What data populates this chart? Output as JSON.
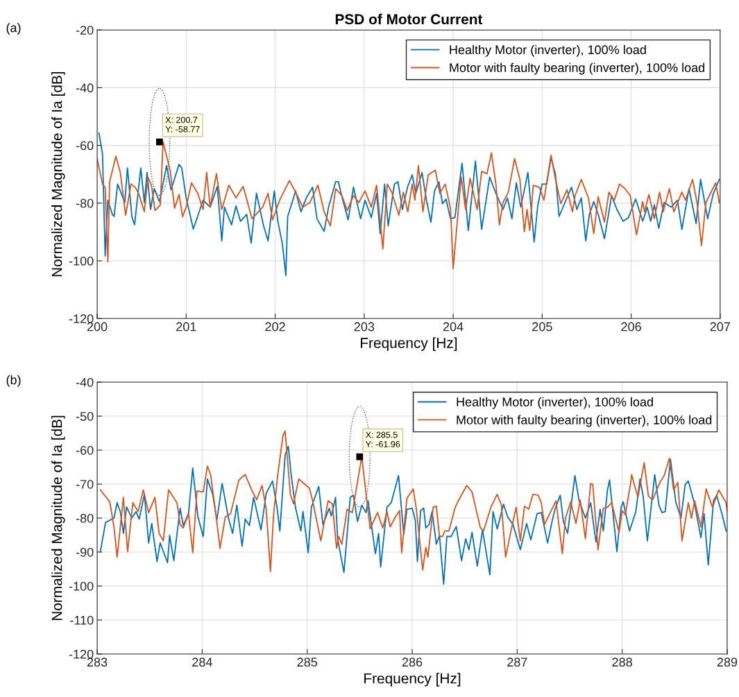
{
  "chart_data": [
    {
      "type": "line",
      "title": "PSD of Motor Current",
      "xlabel": "Frequency [Hz]",
      "ylabel": "Normalized Magnitude of Ia [dB]",
      "xlim": [
        200,
        207
      ],
      "xticks": [
        200,
        201,
        202,
        203,
        204,
        205,
        206,
        207
      ],
      "ylim": [
        -120,
        -20
      ],
      "yticks": [
        -120,
        -100,
        -80,
        -60,
        -40,
        -20
      ],
      "grid": true,
      "legend": "top right",
      "marker": "none",
      "line_style": "solid",
      "annotations": [
        "(a)",
        {
          "text": "X: 200.7\nY: -58.77",
          "x": 200.7,
          "y": -58.77
        }
      ],
      "series": [
        {
          "name": "Healthy Motor (inverter), 100% load",
          "color": "#0072bd",
          "x": [
            200.02,
            200.06,
            200.09,
            200.12,
            200.17,
            200.19,
            200.23,
            200.31,
            200.34,
            200.39,
            200.42,
            200.49,
            200.53,
            200.56,
            200.6,
            200.64,
            200.7,
            200.78,
            200.83,
            200.92,
            200.95,
            201.0,
            201.08,
            201.19,
            201.27,
            201.35,
            201.4,
            201.43,
            201.51,
            201.56,
            201.61,
            201.68,
            201.73,
            201.79,
            201.87,
            201.92,
            201.99,
            202.03,
            202.08,
            202.12,
            202.14,
            202.19,
            202.23,
            202.29,
            202.35,
            202.42,
            202.47,
            202.55,
            202.6,
            202.68,
            202.71,
            202.75,
            202.82,
            202.88,
            202.96,
            203.01,
            203.08,
            203.14,
            203.18,
            203.23,
            203.27,
            203.34,
            203.38,
            203.43,
            203.49,
            203.54,
            203.58,
            203.65,
            203.7,
            203.75,
            203.79,
            203.84,
            203.88,
            203.92,
            203.97,
            204.02,
            204.1,
            204.17,
            204.25,
            204.32,
            204.41,
            204.48,
            204.56,
            204.61,
            204.66,
            204.71,
            204.76,
            204.84,
            204.91,
            204.95,
            205.0,
            205.05,
            205.1,
            205.15,
            205.19,
            205.33,
            205.39,
            205.44,
            205.49,
            205.53,
            205.58,
            205.63,
            205.7,
            205.78,
            205.84,
            205.91,
            205.97,
            206.05,
            206.13,
            206.18,
            206.22,
            206.26,
            206.31,
            206.37,
            206.45,
            206.52,
            206.57,
            206.65,
            206.73,
            206.78,
            206.86,
            206.92,
            206.99
          ],
          "values": [
            -55.7,
            -63,
            -98.3,
            -79,
            -83.9,
            -84.6,
            -73.4,
            -79.8,
            -67.8,
            -84.7,
            -87.5,
            -67.8,
            -79.8,
            -69.4,
            -82.2,
            -75,
            -79.5,
            -67,
            -75.4,
            -66.6,
            -67.8,
            -78.2,
            -89,
            -79,
            -81.4,
            -74.2,
            -93.1,
            -81.4,
            -87.5,
            -81,
            -86.3,
            -83.9,
            -93.9,
            -76.6,
            -87.9,
            -93.1,
            -75.8,
            -86.3,
            -93.9,
            -105.1,
            -84.7,
            -79.8,
            -75.8,
            -83,
            -78.2,
            -74.5,
            -85.4,
            -89.8,
            -81.4,
            -72.6,
            -72.6,
            -77.8,
            -85.8,
            -74.5,
            -85.4,
            -79,
            -85,
            -76.6,
            -90.6,
            -73.4,
            -87.9,
            -73.4,
            -72.6,
            -82.2,
            -74.2,
            -70.2,
            -76.6,
            -69.4,
            -79,
            -86.6,
            -75.8,
            -72.6,
            -80.2,
            -78.6,
            -85.4,
            -85,
            -66.2,
            -89.5,
            -65.4,
            -89.1,
            -71,
            -76.6,
            -82.2,
            -78.2,
            -85.4,
            -73,
            -81.4,
            -69.4,
            -93.5,
            -81,
            -73.4,
            -73.4,
            -64.2,
            -70.2,
            -84.6,
            -74.5,
            -82.2,
            -78.2,
            -93.1,
            -83.9,
            -79.5,
            -83.9,
            -92.3,
            -77.4,
            -82.2,
            -86.3,
            -85,
            -78.6,
            -86.3,
            -81.4,
            -86.3,
            -80.6,
            -88.7,
            -79.8,
            -81.4,
            -79,
            -89.1,
            -75,
            -87.1,
            -71.8,
            -85.4,
            -77,
            -71.8
          ]
        },
        {
          "name": "Motor with faulty bearing (inverter), 100% load",
          "color": "#d95319",
          "x": [
            200.0,
            200.06,
            200.09,
            200.12,
            200.14,
            200.21,
            200.26,
            200.32,
            200.38,
            200.43,
            200.47,
            200.53,
            200.57,
            200.61,
            200.65,
            200.71,
            200.74,
            200.82,
            200.87,
            200.92,
            200.96,
            201.0,
            201.06,
            201.13,
            201.19,
            201.23,
            201.27,
            201.34,
            201.4,
            201.48,
            201.56,
            201.64,
            201.74,
            201.86,
            201.92,
            201.97,
            202.05,
            202.16,
            202.23,
            202.31,
            202.39,
            202.48,
            202.55,
            202.62,
            202.68,
            202.75,
            202.81,
            202.88,
            202.94,
            203.01,
            203.08,
            203.14,
            203.21,
            203.26,
            203.31,
            203.39,
            203.44,
            203.49,
            203.54,
            203.57,
            203.61,
            203.66,
            203.72,
            203.8,
            203.85,
            203.91,
            203.97,
            204.0,
            204.09,
            204.14,
            204.19,
            204.27,
            204.32,
            204.38,
            204.43,
            204.48,
            204.52,
            204.56,
            204.62,
            204.69,
            204.75,
            204.8,
            204.83,
            204.86,
            204.9,
            204.97,
            205.02,
            205.1,
            205.15,
            205.21,
            205.28,
            205.34,
            205.37,
            205.44,
            205.52,
            205.58,
            205.63,
            205.7,
            205.75,
            205.81,
            205.87,
            205.93,
            205.99,
            206.06,
            206.13,
            206.15,
            206.2,
            206.26,
            206.32,
            206.36,
            206.43,
            206.48,
            206.57,
            206.61,
            206.69,
            206.74,
            206.79,
            206.84,
            206.95,
            206.99
          ],
          "values": [
            -64.6,
            -73.4,
            -74.6,
            -100.3,
            -72.6,
            -63.8,
            -69.4,
            -84.2,
            -73.4,
            -74.6,
            -77,
            -83,
            -71,
            -73.8,
            -82.6,
            -80.6,
            -58.77,
            -68.6,
            -81.8,
            -77,
            -84.7,
            -81.4,
            -73,
            -76.6,
            -82.2,
            -69.4,
            -81.4,
            -69.8,
            -82.2,
            -73.8,
            -78.2,
            -74.2,
            -85.4,
            -81.4,
            -76.6,
            -85.8,
            -79,
            -72.2,
            -76.2,
            -81.4,
            -79.8,
            -73.8,
            -83,
            -87.9,
            -75,
            -77.4,
            -82.6,
            -77.4,
            -79.8,
            -75.8,
            -81.4,
            -73.8,
            -95.9,
            -73.4,
            -76.2,
            -84.2,
            -76.2,
            -83,
            -73.4,
            -79,
            -67,
            -83,
            -70.2,
            -68.6,
            -76.6,
            -73.4,
            -81.8,
            -102.7,
            -71,
            -82.2,
            -71.4,
            -82.2,
            -69,
            -69.8,
            -62.6,
            -73.4,
            -87.5,
            -79.8,
            -76.2,
            -64.6,
            -71.8,
            -89.9,
            -82.2,
            -89.5,
            -73.8,
            -74.6,
            -79,
            -63.4,
            -71.8,
            -80.2,
            -75.4,
            -83,
            -77.4,
            -71.8,
            -78.2,
            -90.6,
            -77.8,
            -86.6,
            -76.2,
            -79,
            -73.4,
            -75,
            -77.4,
            -91,
            -79.5,
            -83,
            -77,
            -85.4,
            -76.2,
            -83,
            -75,
            -83,
            -76.2,
            -79,
            -71.8,
            -79.8,
            -94.7,
            -79.8,
            -73,
            -79.8
          ]
        }
      ]
    },
    {
      "type": "line",
      "xlabel": "Frequency [Hz]",
      "ylabel": "Normalized Magnitude of Ia [dB]",
      "xlim": [
        283,
        289
      ],
      "xticks": [
        283,
        284,
        285,
        286,
        287,
        288,
        289
      ],
      "ylim": [
        -120,
        -40
      ],
      "yticks": [
        -120,
        -110,
        -100,
        -90,
        -80,
        -70,
        -60,
        -50,
        -40
      ],
      "grid": true,
      "legend": "top right",
      "marker": "none",
      "line_style": "solid",
      "annotations": [
        "(b)",
        {
          "text": "X: 285.5\nY: -61.96",
          "x": 285.5,
          "y": -61.96
        }
      ],
      "series": [
        {
          "name": "Healthy Motor (inverter), 100% load",
          "color": "#0072bd",
          "x": [
            283.03,
            283.08,
            283.16,
            283.19,
            283.22,
            283.25,
            283.28,
            283.33,
            283.37,
            283.4,
            283.45,
            283.49,
            283.52,
            283.57,
            283.6,
            283.67,
            283.69,
            283.73,
            283.79,
            283.82,
            283.87,
            283.91,
            283.96,
            284.01,
            284.05,
            284.1,
            284.14,
            284.19,
            284.25,
            284.29,
            284.33,
            284.38,
            284.41,
            284.45,
            284.49,
            284.56,
            284.61,
            284.67,
            284.71,
            284.74,
            284.79,
            284.82,
            284.85,
            284.89,
            284.94,
            284.96,
            285.01,
            285.04,
            285.11,
            285.15,
            285.21,
            285.23,
            285.27,
            285.29,
            285.35,
            285.41,
            285.44,
            285.48,
            285.52,
            285.56,
            285.58,
            285.65,
            285.68,
            285.7,
            285.76,
            285.8,
            285.87,
            285.92,
            285.95,
            286.0,
            286.03,
            286.05,
            286.08,
            286.11,
            286.13,
            286.16,
            286.19,
            286.23,
            286.26,
            286.3,
            286.33,
            286.37,
            286.42,
            286.47,
            286.51,
            286.54,
            286.57,
            286.62,
            286.67,
            286.74,
            286.77,
            286.81,
            286.87,
            286.91,
            286.96,
            287.03,
            287.09,
            287.13,
            287.19,
            287.23,
            287.29,
            287.33,
            287.36,
            287.41,
            287.44,
            287.48,
            287.55,
            287.59,
            287.65,
            287.7,
            287.75,
            287.79,
            287.82,
            287.86,
            287.88,
            287.95,
            287.99,
            288.01,
            288.07,
            288.11,
            288.13,
            288.17,
            288.2,
            288.24,
            288.31,
            288.35,
            288.38,
            288.41,
            288.46,
            288.51,
            288.56,
            288.6,
            288.63,
            288.69,
            288.75,
            288.78,
            288.82,
            288.87,
            288.9,
            288.95,
            288.99
          ],
          "values": [
            -89.9,
            -81.3,
            -80,
            -75.5,
            -78.1,
            -84.5,
            -76.7,
            -80,
            -78.1,
            -80.3,
            -73,
            -87.3,
            -81.6,
            -92.8,
            -87.3,
            -93.1,
            -85.1,
            -92.5,
            -77.1,
            -82.2,
            -78.7,
            -65.3,
            -79.7,
            -85.4,
            -68.5,
            -73,
            -80.6,
            -69.8,
            -80,
            -84.5,
            -76.2,
            -88.3,
            -80.3,
            -82.2,
            -73.9,
            -83.5,
            -72.7,
            -69.1,
            -76.2,
            -83.8,
            -61.5,
            -58.9,
            -67.9,
            -77.1,
            -83.8,
            -78.1,
            -90.2,
            -76.8,
            -70.7,
            -81.9,
            -77.1,
            -79.4,
            -73.9,
            -86.1,
            -96,
            -73.9,
            -73.3,
            -81,
            -76.2,
            -78.4,
            -74.9,
            -90.5,
            -84.5,
            -94.4,
            -76.8,
            -75.5,
            -67.5,
            -84.8,
            -77.4,
            -77.1,
            -80.6,
            -92.8,
            -77.8,
            -77.1,
            -82.9,
            -81.9,
            -78.1,
            -87.7,
            -85.1,
            -99.5,
            -85.4,
            -85.4,
            -82.5,
            -92.5,
            -86.1,
            -89.3,
            -84.2,
            -94.1,
            -83.5,
            -96.7,
            -78.1,
            -83.2,
            -75.9,
            -79.7,
            -81.9,
            -89.3,
            -81.6,
            -86.4,
            -78.7,
            -78.4,
            -87.3,
            -81.3,
            -77.4,
            -73.3,
            -81,
            -84.5,
            -67.5,
            -74.9,
            -80,
            -75.5,
            -87,
            -77.4,
            -83.8,
            -71.7,
            -68.8,
            -89.9,
            -76.8,
            -75.2,
            -83.8,
            -80,
            -78.1,
            -68.5,
            -73.6,
            -86.7,
            -67.2,
            -76.2,
            -78.4,
            -78.1,
            -62.7,
            -75.2,
            -80,
            -70.1,
            -69.1,
            -75.9,
            -85.8,
            -78.7,
            -93.8,
            -74.9,
            -73.3,
            -78.7,
            -83.8
          ]
        },
        {
          "name": "Motor with faulty bearing (inverter), 100% load",
          "color": "#d95319",
          "x": [
            283.03,
            283.12,
            283.16,
            283.19,
            283.25,
            283.29,
            283.34,
            283.39,
            283.44,
            283.49,
            283.55,
            283.59,
            283.63,
            283.68,
            283.76,
            283.79,
            283.82,
            283.87,
            283.91,
            283.95,
            284.01,
            284.05,
            284.08,
            284.13,
            284.17,
            284.22,
            284.27,
            284.35,
            284.41,
            284.48,
            284.52,
            284.57,
            284.61,
            284.65,
            284.68,
            284.72,
            284.77,
            284.79,
            284.84,
            284.87,
            284.92,
            284.99,
            285.02,
            285.05,
            285.13,
            285.2,
            285.24,
            285.28,
            285.3,
            285.33,
            285.38,
            285.43,
            285.52,
            285.6,
            285.67,
            285.72,
            285.76,
            285.79,
            285.84,
            285.88,
            285.9,
            285.95,
            286.01,
            286.04,
            286.1,
            286.13,
            286.15,
            286.2,
            286.23,
            286.26,
            286.29,
            286.31,
            286.35,
            286.41,
            286.44,
            286.52,
            286.57,
            286.65,
            286.68,
            286.75,
            286.81,
            286.85,
            286.89,
            286.93,
            286.99,
            287.03,
            287.07,
            287.11,
            287.15,
            287.2,
            287.23,
            287.26,
            287.31,
            287.37,
            287.43,
            287.46,
            287.51,
            287.56,
            287.6,
            287.65,
            287.7,
            287.72,
            287.77,
            287.82,
            287.86,
            287.9,
            287.97,
            288.0,
            288.03,
            288.08,
            288.09,
            288.15,
            288.21,
            288.25,
            288.29,
            288.36,
            288.4,
            288.45,
            288.49,
            288.53,
            288.57,
            288.63,
            288.66,
            288.69,
            288.75,
            288.8,
            288.86,
            288.92,
            288.99,
            289.0
          ],
          "values": [
            -71.7,
            -75.2,
            -82.6,
            -91.5,
            -73.9,
            -89.9,
            -75.5,
            -78.1,
            -71.7,
            -78.4,
            -73.9,
            -84.5,
            -86.7,
            -71.7,
            -75.5,
            -81.9,
            -82.9,
            -78.7,
            -90.2,
            -72,
            -72.3,
            -64.7,
            -67.2,
            -78.7,
            -88.9,
            -79.7,
            -78.7,
            -68.8,
            -67.2,
            -72.3,
            -74.6,
            -70.4,
            -77.4,
            -95.7,
            -79,
            -67.2,
            -55.7,
            -54.4,
            -73,
            -75.8,
            -68.5,
            -70.4,
            -71.1,
            -74.6,
            -86.7,
            -74.9,
            -75.8,
            -88.9,
            -85.4,
            -87.7,
            -77.4,
            -78.4,
            -61.96,
            -83.2,
            -78.4,
            -82.9,
            -78.1,
            -82.6,
            -79.7,
            -77.8,
            -90.2,
            -74.2,
            -71.4,
            -77.4,
            -95.3,
            -88.6,
            -91.5,
            -76.8,
            -76.5,
            -85.4,
            -85.4,
            -83.8,
            -83.8,
            -76.8,
            -74.9,
            -70.4,
            -72.3,
            -82.9,
            -83.8,
            -76.8,
            -73,
            -76.2,
            -91.5,
            -85.4,
            -76.8,
            -86.7,
            -76.5,
            -77.4,
            -73,
            -73.3,
            -75.5,
            -81.9,
            -78.7,
            -74.9,
            -90.5,
            -80,
            -75.2,
            -81.6,
            -74.6,
            -86.1,
            -69.8,
            -70.1,
            -89.3,
            -77.1,
            -76.8,
            -75.5,
            -84.2,
            -77.8,
            -79,
            -69.8,
            -67.2,
            -73.9,
            -63.7,
            -73.6,
            -74.6,
            -69.5,
            -67.5,
            -62.4,
            -71.7,
            -69.5,
            -86.7,
            -75.5,
            -80,
            -74.9,
            -82.6,
            -71.4,
            -76.8,
            -71.7,
            -75.5,
            -78.1
          ]
        }
      ]
    }
  ]
}
